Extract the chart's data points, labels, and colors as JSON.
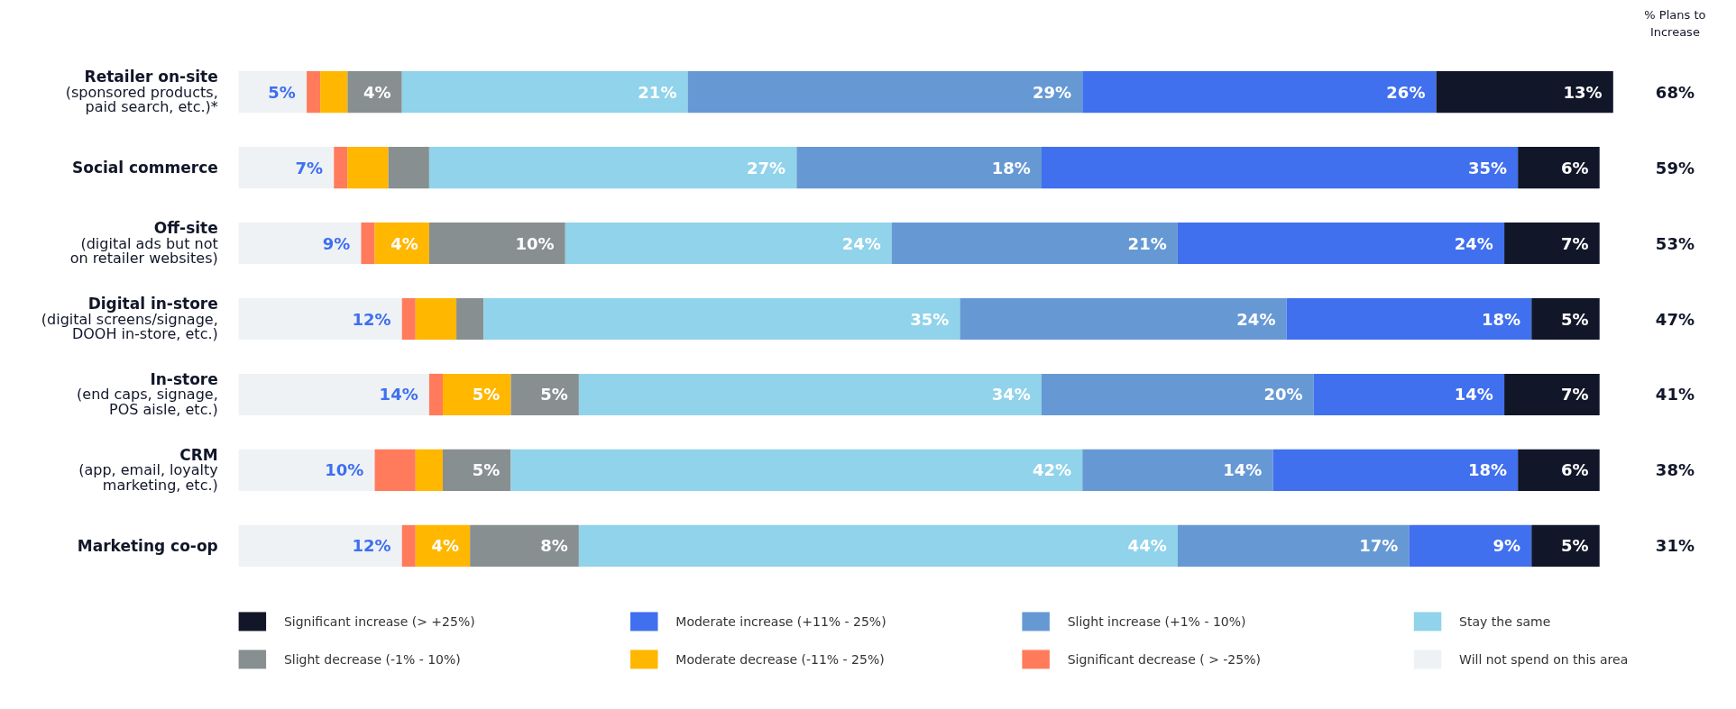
{
  "chart_data": {
    "type": "bar",
    "orientation": "horizontal",
    "stacked": true,
    "legend": "bottom",
    "grid": false,
    "xlim": [
      0,
      101
    ],
    "categories": [
      "Retailer on-site\n(sponsored products,\npaid search, etc.)*",
      "Social commerce",
      "Off-site\n(digital ads but not\non retailer websites)",
      "Digital in-store\n(digital screens/signage,\nDOOH in-store, etc.)",
      "In-store\n(end caps, signage,\nPOS aisle, etc.)",
      "CRM\n(app, email, loyalty\nmarketing, etc.)",
      "Marketing co-op"
    ],
    "series": [
      {
        "name": "Will not spend on this area",
        "color": "#eef2f5",
        "values": [
          5,
          7,
          9,
          12,
          14,
          10,
          12
        ],
        "value_labels": [
          "5%",
          "7%",
          "9%",
          "12%",
          "14%",
          "10%",
          "12%"
        ]
      },
      {
        "name": "Significant decrease ( > -25%)",
        "color": "#ff7b5c",
        "values": [
          1,
          1,
          1,
          1,
          1,
          3,
          1
        ],
        "value_labels": [
          null,
          null,
          null,
          null,
          null,
          null,
          null
        ]
      },
      {
        "name": "Moderate decrease (-11% - 25%)",
        "color": "#ffb700",
        "values": [
          2,
          3,
          4,
          3,
          5,
          2,
          4
        ],
        "value_labels": [
          null,
          null,
          "4%",
          null,
          "5%",
          null,
          "4%"
        ]
      },
      {
        "name": "Slight decrease (-1% - 10%)",
        "color": "#888f90",
        "values": [
          4,
          3,
          10,
          2,
          5,
          5,
          8
        ],
        "value_labels": [
          "4%",
          null,
          "10%",
          null,
          "5%",
          "5%",
          "8%"
        ]
      },
      {
        "name": "Stay the same",
        "color": "#90d3ea",
        "values": [
          21,
          27,
          24,
          35,
          34,
          42,
          44
        ],
        "value_labels": [
          "21%",
          "27%",
          "24%",
          "35%",
          "34%",
          "42%",
          "44%"
        ]
      },
      {
        "name": "Slight increase (+1% - 10%)",
        "color": "#6699d4",
        "values": [
          29,
          18,
          21,
          24,
          20,
          14,
          17
        ],
        "value_labels": [
          "29%",
          "18%",
          "21%",
          "24%",
          "20%",
          "14%",
          "17%"
        ]
      },
      {
        "name": "Moderate increase (+11% - 25%)",
        "color": "#4070ee",
        "values": [
          26,
          35,
          24,
          18,
          14,
          18,
          9
        ],
        "value_labels": [
          "26%",
          "35%",
          "24%",
          "18%",
          "14%",
          "18%",
          "9%"
        ]
      },
      {
        "name": "Significant increase (> +25%)",
        "color": "#111629",
        "values": [
          13,
          6,
          7,
          5,
          7,
          6,
          5
        ],
        "value_labels": [
          "13%",
          "6%",
          "7%",
          "5%",
          "7%",
          "6%",
          "5%"
        ]
      }
    ],
    "annotations": [
      "% Plans to\nIncrease",
      "68%",
      "59%",
      "53%",
      "47%",
      "41%",
      "38%",
      "31%"
    ]
  }
}
